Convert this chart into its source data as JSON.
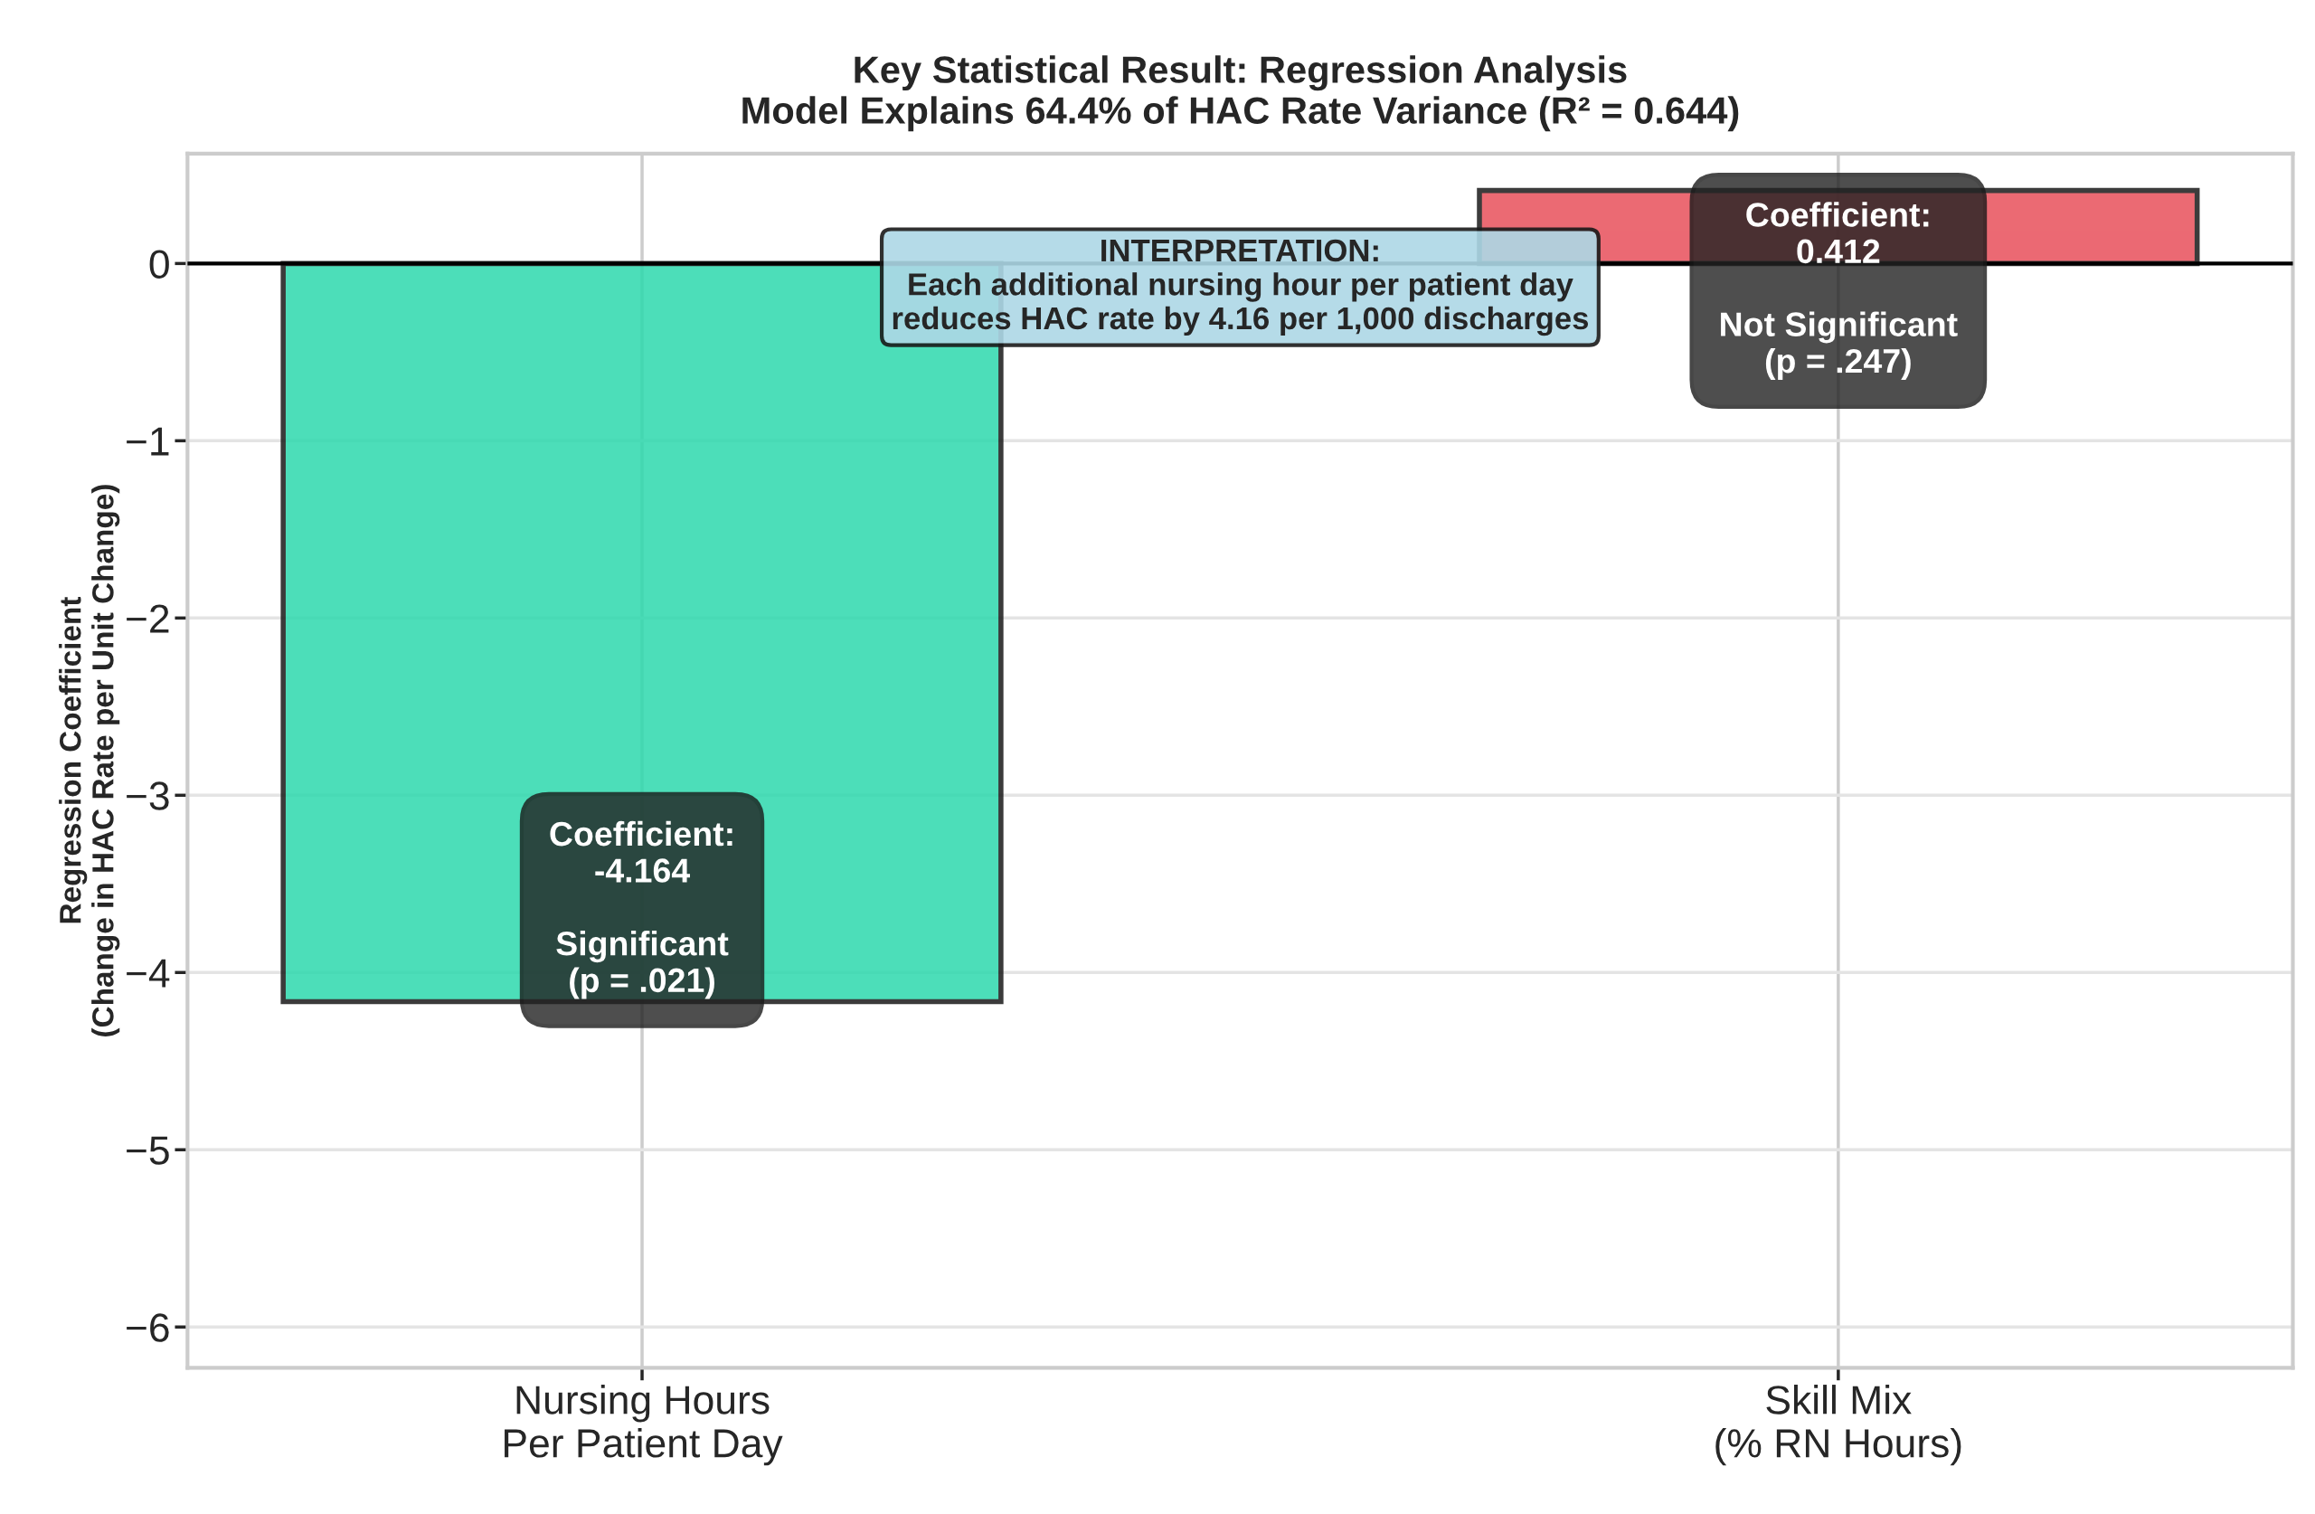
{
  "chart_data": {
    "type": "bar",
    "title": "Key Statistical Result: Regression Analysis\nModel Explains 64.4% of HAC Rate Variance (R² = 0.644)",
    "ylabel": "Regression Coefficient\n(Change in HAC Rate per Unit Change)",
    "categories": [
      "Nursing Hours\nPer Patient Day",
      "Skill Mix\n(% RN Hours)"
    ],
    "values": [
      -4.164,
      0.412
    ],
    "colors": [
      "#2dd9ad",
      "#e8505b"
    ],
    "ylim": [
      -6.23,
      0.62
    ],
    "yticks": [
      {
        "value": -6,
        "label": "−6"
      },
      {
        "value": -5,
        "label": "−5"
      },
      {
        "value": -4,
        "label": "−4"
      },
      {
        "value": -3,
        "label": "−3"
      },
      {
        "value": -2,
        "label": "−2"
      },
      {
        "value": -1,
        "label": "−1"
      },
      0
    ],
    "grid": true,
    "ref_lines": [
      {
        "axis": "y",
        "value": 0,
        "color": "#000000",
        "line_style": "solid"
      }
    ],
    "annotations": [
      "Coefficient:\n-4.164\n\nSignificant\n(p = .021)",
      "Coefficient:\n0.412\n\nNot Significant\n(p = .247)",
      "INTERPRETATION:\nEach additional nursing hour per patient day\nreduces HAC rate by 4.16 per 1,000 discharges"
    ]
  }
}
